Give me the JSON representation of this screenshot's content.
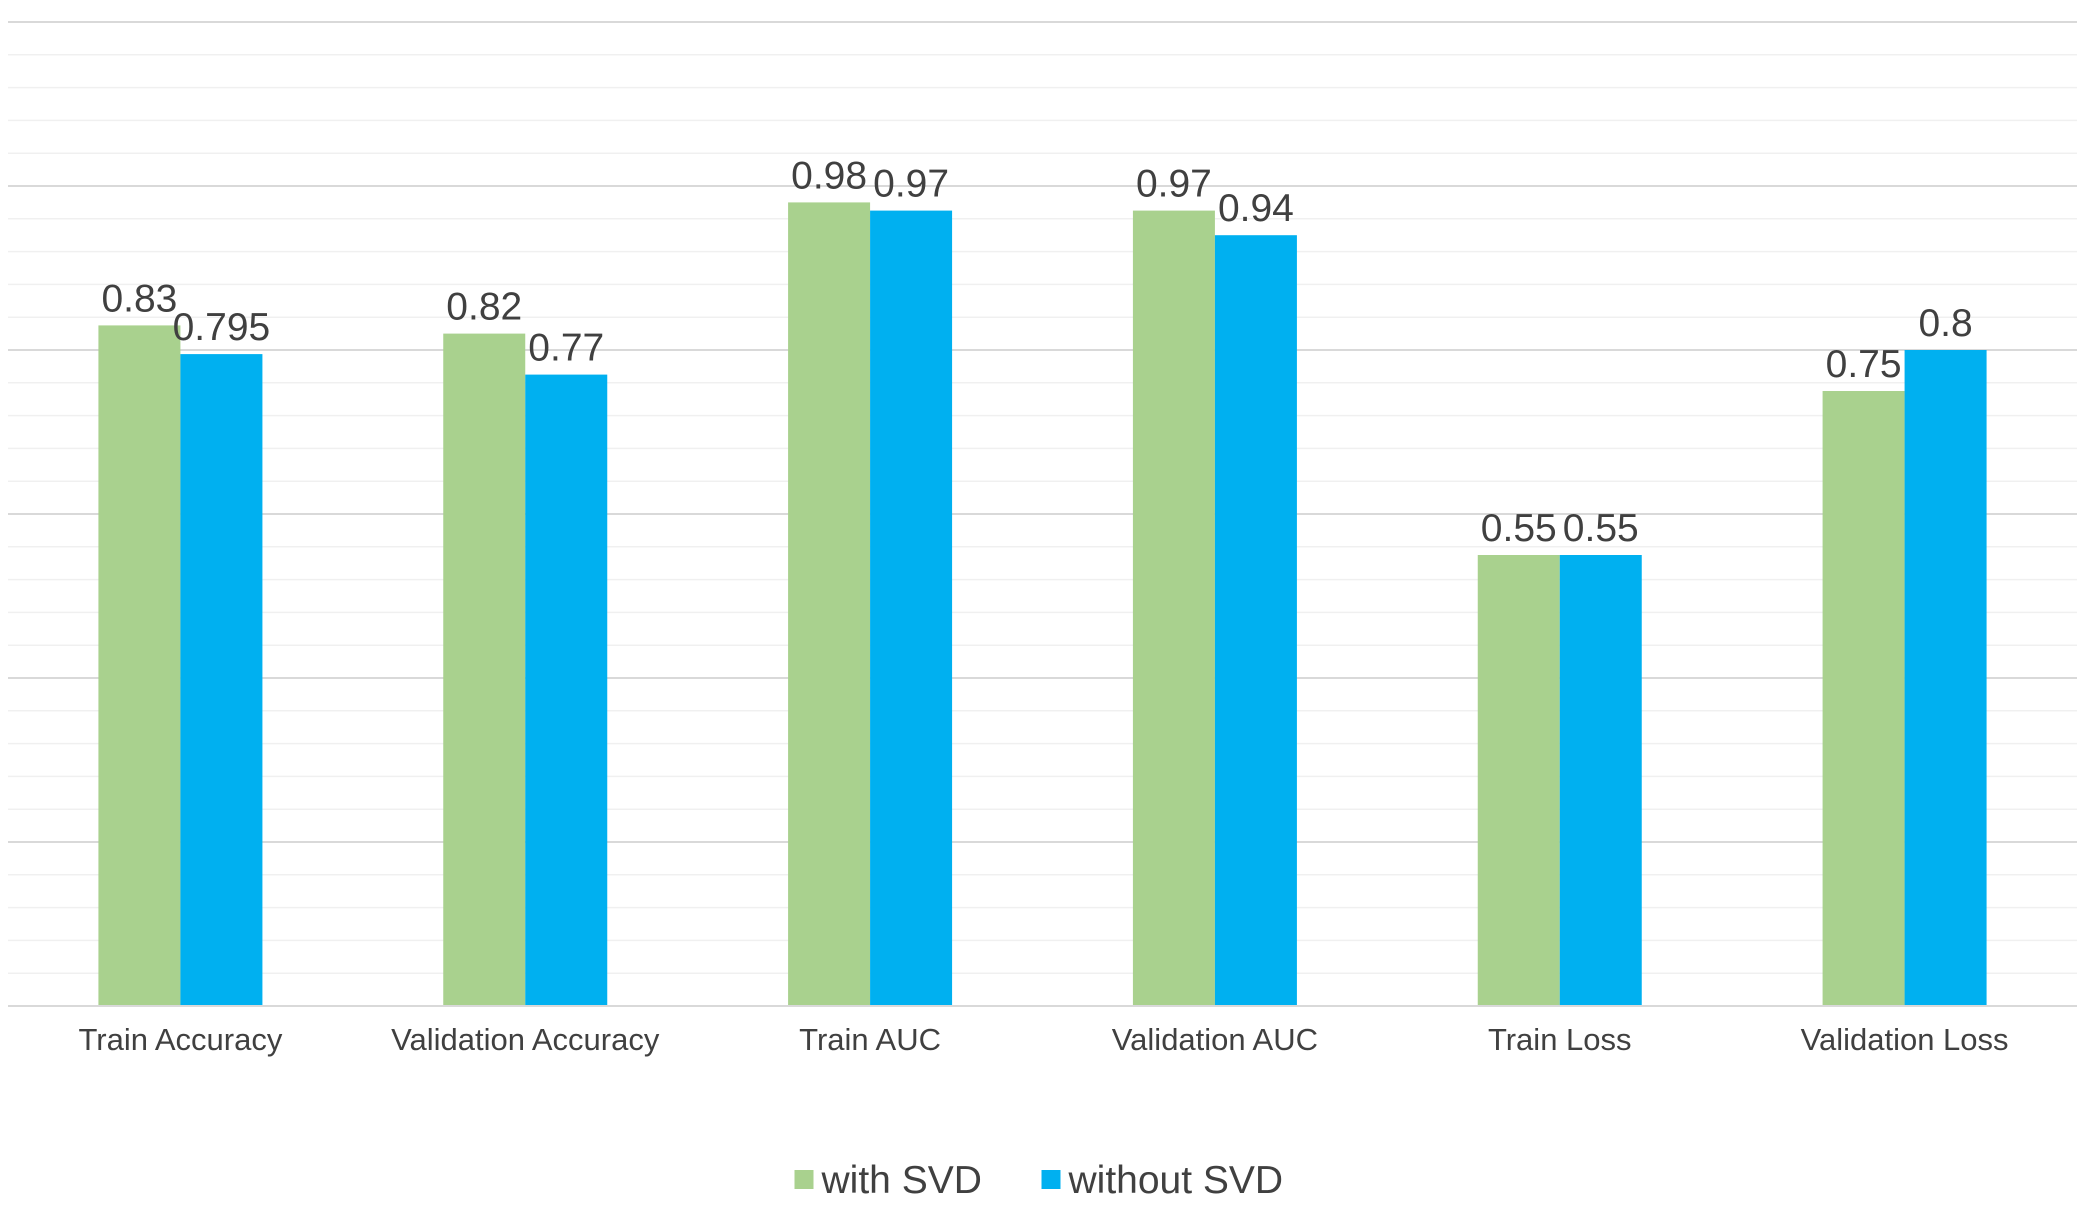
{
  "chart_data": {
    "type": "bar",
    "title": "",
    "xlabel": "",
    "ylabel": "",
    "ylim": [
      0,
      1.2
    ],
    "major_gridlines": [
      0.2,
      0.4,
      0.6,
      0.8,
      1.0,
      1.2
    ],
    "minor_gridline_step": 0.04,
    "y_tick_labels_visible": false,
    "categories": [
      "Train Accuracy",
      "Validation Accuracy",
      "Train AUC",
      "Validation AUC",
      "Train Loss",
      "Validation Loss"
    ],
    "series": [
      {
        "name": "with SVD",
        "color": "#A9D18E",
        "values": [
          0.83,
          0.82,
          0.98,
          0.97,
          0.55,
          0.75
        ],
        "labels": [
          "0.83",
          "0.82",
          "0.98",
          "0.97",
          "0.55",
          "0.75"
        ]
      },
      {
        "name": "without SVD",
        "color": "#00B0F0",
        "values": [
          0.795,
          0.77,
          0.97,
          0.94,
          0.55,
          0.8
        ],
        "labels": [
          "0.795",
          "0.77",
          "0.97",
          "0.94",
          "0.55",
          "0.8"
        ]
      }
    ],
    "legend_position": "bottom",
    "grid": true
  }
}
